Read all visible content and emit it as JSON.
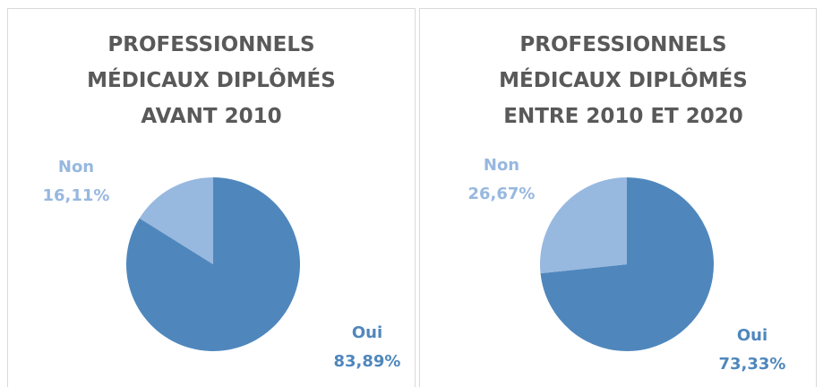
{
  "chart_data": [
    {
      "type": "pie",
      "title": "PROFESSIONNELS\nMÉDICAUX DIPLÔMÉS\nAVANT 2010",
      "categories": [
        "Oui",
        "Non"
      ],
      "values": [
        83.89,
        16.11
      ],
      "value_labels": [
        "83,89%",
        "16,11%"
      ],
      "colors": [
        "#4f87bd",
        "#97b8df"
      ]
    },
    {
      "type": "pie",
      "title": "PROFESSIONNELS\nMÉDICAUX DIPLÔMÉS\nENTRE 2010 ET 2020",
      "categories": [
        "Oui",
        "Non"
      ],
      "values": [
        73.33,
        26.67
      ],
      "value_labels": [
        "73,33%",
        "26,67%"
      ],
      "colors": [
        "#4f87bd",
        "#97b8df"
      ]
    }
  ]
}
